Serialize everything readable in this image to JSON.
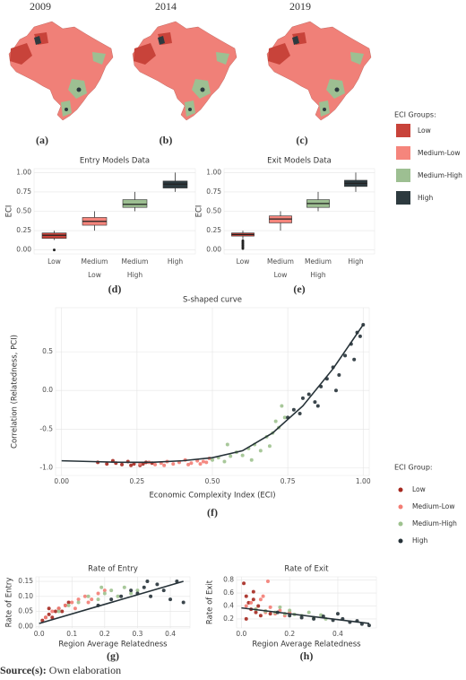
{
  "maps": {
    "years": [
      "2009",
      "2014",
      "2019"
    ],
    "panel_labels": [
      "(a)",
      "(b)",
      "(c)"
    ],
    "legend_title": "ECI Groups:",
    "groups": [
      {
        "name": "Low",
        "color": "#c8433a"
      },
      {
        "name": "Medium-Low",
        "color": "#f5857c"
      },
      {
        "name": "Medium-High",
        "color": "#9dbf92"
      },
      {
        "name": "High",
        "color": "#2d3a3f"
      }
    ]
  },
  "source": {
    "label": "Source(s):",
    "text": "Own elaboration"
  },
  "chart_data": [
    {
      "type": "boxplot",
      "title": "Entry Models Data",
      "ylabel": "ECI",
      "panel_label": "(d)",
      "categories": [
        "Low",
        "Medium Low",
        "Medium High",
        "High"
      ],
      "colors": [
        "#c8433a",
        "#f5857c",
        "#9dbf92",
        "#2d3a3f"
      ],
      "min": [
        0.13,
        0.25,
        0.5,
        0.75
      ],
      "q1": [
        0.15,
        0.32,
        0.55,
        0.8
      ],
      "median": [
        0.19,
        0.37,
        0.59,
        0.85
      ],
      "q3": [
        0.22,
        0.42,
        0.65,
        0.89
      ],
      "max": [
        0.25,
        0.5,
        0.75,
        1.0
      ],
      "outliers": [
        [
          0.0
        ],
        [],
        [],
        []
      ],
      "ylim": [
        -0.05,
        1.05
      ],
      "yticks": [
        {
          "value": 0,
          "label": "0.00"
        },
        {
          "value": 0.25,
          "label": "0.25"
        },
        {
          "value": 0.5,
          "label": "0.50"
        },
        {
          "value": 0.75,
          "label": "0.75"
        },
        {
          "value": 1,
          "label": "1.00"
        }
      ],
      "grid": true
    },
    {
      "type": "boxplot",
      "title": "Exit Models Data",
      "ylabel": "ECI",
      "panel_label": "(e)",
      "categories": [
        "Low",
        "Medium Low",
        "Medium High",
        "High"
      ],
      "colors": [
        "#c8433a",
        "#f5857c",
        "#9dbf92",
        "#2d3a3f"
      ],
      "min": [
        0.14,
        0.25,
        0.5,
        0.75
      ],
      "q1": [
        0.18,
        0.35,
        0.55,
        0.82
      ],
      "median": [
        0.2,
        0.4,
        0.6,
        0.86
      ],
      "q3": [
        0.22,
        0.44,
        0.65,
        0.9
      ],
      "max": [
        0.25,
        0.5,
        0.75,
        1.0
      ],
      "outliers": [
        [
          0.12,
          0.1,
          0.08,
          0.06,
          0.04,
          0.02
        ],
        [],
        [],
        []
      ],
      "ylim": [
        -0.05,
        1.05
      ],
      "yticks": [
        {
          "value": 0,
          "label": "0.00"
        },
        {
          "value": 0.25,
          "label": "0.25"
        },
        {
          "value": 0.5,
          "label": "0.50"
        },
        {
          "value": 0.75,
          "label": "0.75"
        },
        {
          "value": 1,
          "label": "1.00"
        }
      ],
      "grid": true
    },
    {
      "type": "scatter",
      "title": "S-shaped curve",
      "xlabel": "Economic Complexity Index (ECI)",
      "ylabel": "Correlation (Relatedness, PCI)",
      "panel_label": "(f)",
      "legend": true,
      "legend_title": "ECI Group:",
      "series": [
        {
          "name": "Low",
          "color": "#a5281f",
          "x": [
            0.12,
            0.15,
            0.18,
            0.2,
            0.22,
            0.24,
            0.26,
            0.28,
            0.3,
            0.17,
            0.23,
            0.27
          ],
          "y": [
            -0.93,
            -0.95,
            -0.94,
            -0.96,
            -0.92,
            -0.95,
            -0.97,
            -0.93,
            -0.94,
            -0.91,
            -0.97,
            -0.95
          ]
        },
        {
          "name": "Medium-Low",
          "color": "#f37d74",
          "x": [
            0.26,
            0.29,
            0.31,
            0.33,
            0.35,
            0.37,
            0.39,
            0.41,
            0.43,
            0.45,
            0.47,
            0.49,
            0.34,
            0.42,
            0.46,
            0.48
          ],
          "y": [
            -0.95,
            -0.93,
            -0.96,
            -0.94,
            -0.92,
            -0.95,
            -0.93,
            -0.9,
            -0.94,
            -0.91,
            -0.92,
            -0.88,
            -0.97,
            -0.96,
            -0.95,
            -0.93
          ]
        },
        {
          "name": "Medium-High",
          "color": "#9ec28f",
          "x": [
            0.5,
            0.52,
            0.54,
            0.56,
            0.58,
            0.6,
            0.62,
            0.64,
            0.66,
            0.68,
            0.7,
            0.72,
            0.74,
            0.55,
            0.63,
            0.69,
            0.73,
            0.71
          ],
          "y": [
            -0.9,
            -0.87,
            -0.92,
            -0.85,
            -0.8,
            -0.84,
            -0.75,
            -0.7,
            -0.78,
            -0.6,
            -0.55,
            -0.48,
            -0.35,
            -0.7,
            -0.9,
            -0.72,
            -0.2,
            -0.4
          ]
        },
        {
          "name": "High",
          "color": "#263238",
          "x": [
            0.75,
            0.77,
            0.79,
            0.8,
            0.82,
            0.84,
            0.86,
            0.88,
            0.9,
            0.92,
            0.94,
            0.96,
            0.97,
            0.98,
            0.99,
            1.0,
            0.85,
            0.91
          ],
          "y": [
            -0.35,
            -0.25,
            -0.3,
            -0.1,
            -0.05,
            -0.15,
            0.05,
            0.15,
            0.3,
            0.2,
            0.45,
            0.6,
            0.4,
            0.75,
            0.7,
            0.85,
            -0.2,
            0.0
          ]
        }
      ],
      "trend": {
        "x": [
          0,
          0.1,
          0.2,
          0.3,
          0.4,
          0.5,
          0.6,
          0.7,
          0.8,
          0.9,
          1.0
        ],
        "y": [
          -0.91,
          -0.92,
          -0.93,
          -0.93,
          -0.91,
          -0.87,
          -0.78,
          -0.55,
          -0.2,
          0.28,
          0.85
        ]
      },
      "xlim": [
        -0.02,
        1.02
      ],
      "ylim": [
        -1.1,
        1.07
      ],
      "xticks": [
        {
          "value": 0,
          "label": "0.00"
        },
        {
          "value": 0.25,
          "label": "0.25"
        },
        {
          "value": 0.5,
          "label": "0.50"
        },
        {
          "value": 0.75,
          "label": "0.75"
        },
        {
          "value": 1,
          "label": "1.00"
        }
      ],
      "yticks": [
        {
          "value": -1,
          "label": "-1.0"
        },
        {
          "value": -0.5,
          "label": "-0.5"
        },
        {
          "value": 0,
          "label": "0.0"
        },
        {
          "value": 0.5,
          "label": "0.5"
        }
      ],
      "grid": true
    },
    {
      "type": "scatter",
      "title": "Rate of Entry",
      "xlabel": "Region Average Relatedness",
      "ylabel": "Rate of Entry",
      "panel_label": "(g)",
      "legend": false,
      "series": [
        {
          "color": "#a5281f",
          "x": [
            0.01,
            0.02,
            0.03,
            0.04,
            0.05,
            0.06,
            0.07,
            0.08,
            0.09,
            0.03
          ],
          "y": [
            0.02,
            0.03,
            0.04,
            0.03,
            0.05,
            0.06,
            0.05,
            0.07,
            0.08,
            0.06
          ]
        },
        {
          "color": "#f37d74",
          "x": [
            0.02,
            0.04,
            0.06,
            0.08,
            0.1,
            0.12,
            0.14,
            0.16,
            0.18,
            0.2,
            0.11,
            0.15
          ],
          "y": [
            0.03,
            0.05,
            0.06,
            0.07,
            0.08,
            0.09,
            0.1,
            0.09,
            0.11,
            0.12,
            0.06,
            0.08
          ]
        },
        {
          "color": "#9ec28f",
          "x": [
            0.06,
            0.09,
            0.12,
            0.15,
            0.18,
            0.2,
            0.22,
            0.24,
            0.26,
            0.28,
            0.3,
            0.19
          ],
          "y": [
            0.05,
            0.07,
            0.08,
            0.1,
            0.09,
            0.11,
            0.12,
            0.1,
            0.13,
            0.11,
            0.12,
            0.13
          ]
        },
        {
          "color": "#263238",
          "x": [
            0.18,
            0.22,
            0.25,
            0.28,
            0.3,
            0.32,
            0.34,
            0.36,
            0.38,
            0.4,
            0.42,
            0.44,
            0.33
          ],
          "y": [
            0.07,
            0.09,
            0.1,
            0.12,
            0.11,
            0.13,
            0.1,
            0.14,
            0.12,
            0.09,
            0.15,
            0.08,
            0.15
          ]
        }
      ],
      "trend": {
        "x": [
          0,
          0.44
        ],
        "y": [
          0.01,
          0.15
        ]
      },
      "xlim": [
        -0.01,
        0.46
      ],
      "ylim": [
        -0.005,
        0.165
      ],
      "xticks": [
        {
          "value": 0,
          "label": "0.0"
        },
        0.1,
        0.2,
        0.3,
        0.4
      ],
      "yticks": [
        {
          "value": 0,
          "label": "0.00"
        },
        {
          "value": 0.05,
          "label": "0.05"
        },
        {
          "value": 0.1,
          "label": "0.10"
        },
        {
          "value": 0.15,
          "label": "0.15"
        }
      ],
      "grid": true
    },
    {
      "type": "scatter",
      "title": "Rate of Exit",
      "xlabel": "Region Average Relatedness",
      "ylabel": "Rate of Exit",
      "panel_label": "(h)",
      "legend": false,
      "series": [
        {
          "color": "#a5281f",
          "x": [
            0.01,
            0.02,
            0.03,
            0.04,
            0.05,
            0.06,
            0.07,
            0.08,
            0.1,
            0.12,
            0.02,
            0.05
          ],
          "y": [
            0.75,
            0.55,
            0.45,
            0.35,
            0.5,
            0.3,
            0.4,
            0.25,
            0.32,
            0.28,
            0.2,
            0.62
          ]
        },
        {
          "color": "#f37d74",
          "x": [
            0.02,
            0.04,
            0.06,
            0.08,
            0.1,
            0.12,
            0.14,
            0.16,
            0.18,
            0.2,
            0.09,
            0.11
          ],
          "y": [
            0.4,
            0.45,
            0.35,
            0.5,
            0.3,
            0.38,
            0.28,
            0.33,
            0.25,
            0.3,
            0.55,
            0.78
          ]
        },
        {
          "color": "#9ec28f",
          "x": [
            0.06,
            0.1,
            0.14,
            0.18,
            0.2,
            0.22,
            0.25,
            0.28,
            0.3,
            0.33,
            0.35,
            0.16
          ],
          "y": [
            0.35,
            0.32,
            0.3,
            0.28,
            0.33,
            0.27,
            0.25,
            0.3,
            0.22,
            0.26,
            0.2,
            0.38
          ]
        },
        {
          "color": "#263238",
          "x": [
            0.15,
            0.2,
            0.25,
            0.3,
            0.34,
            0.38,
            0.42,
            0.45,
            0.48,
            0.5,
            0.53,
            0.4
          ],
          "y": [
            0.3,
            0.25,
            0.22,
            0.2,
            0.24,
            0.18,
            0.2,
            0.15,
            0.17,
            0.12,
            0.1,
            0.28
          ]
        }
      ],
      "trend": {
        "x": [
          0,
          0.53
        ],
        "y": [
          0.37,
          0.13
        ]
      },
      "xlim": [
        -0.02,
        0.56
      ],
      "ylim": [
        0.06,
        0.85
      ],
      "xticks": [
        {
          "value": 0,
          "label": "0.0"
        },
        0.2,
        0.4
      ],
      "yticks": [
        0.2,
        0.4,
        0.6,
        0.8
      ],
      "grid": true
    }
  ]
}
